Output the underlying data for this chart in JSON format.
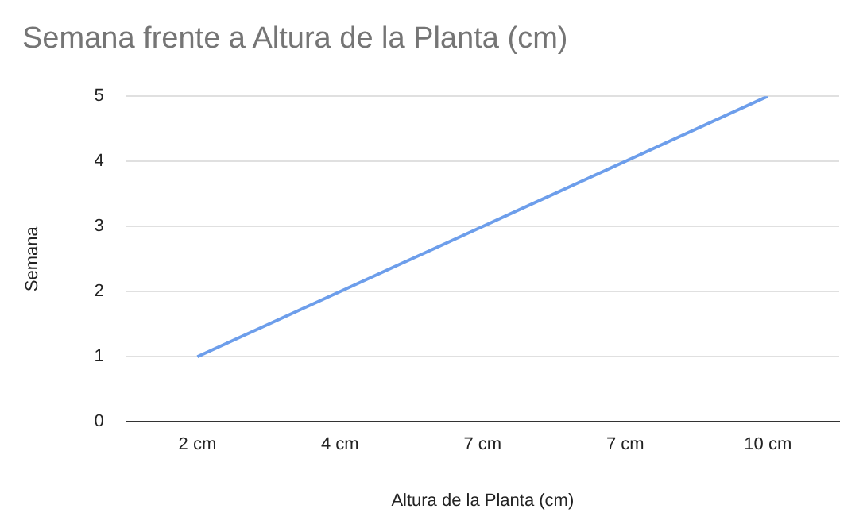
{
  "chart_data": {
    "type": "line",
    "title": "Semana frente a Altura de la Planta (cm)",
    "xlabel": "Altura de la Planta (cm)",
    "ylabel": "Semana",
    "categories": [
      "2 cm",
      "4 cm",
      "7 cm",
      "7 cm",
      "10 cm"
    ],
    "series": [
      {
        "color": "#6d9eeb",
        "values": [
          1,
          2,
          3,
          4,
          5
        ]
      }
    ],
    "ylim": [
      0,
      5
    ],
    "yticks": [
      0,
      1,
      2,
      3,
      4,
      5
    ],
    "grid": "y",
    "legend": false,
    "marker": "none",
    "line_style": "solid"
  }
}
